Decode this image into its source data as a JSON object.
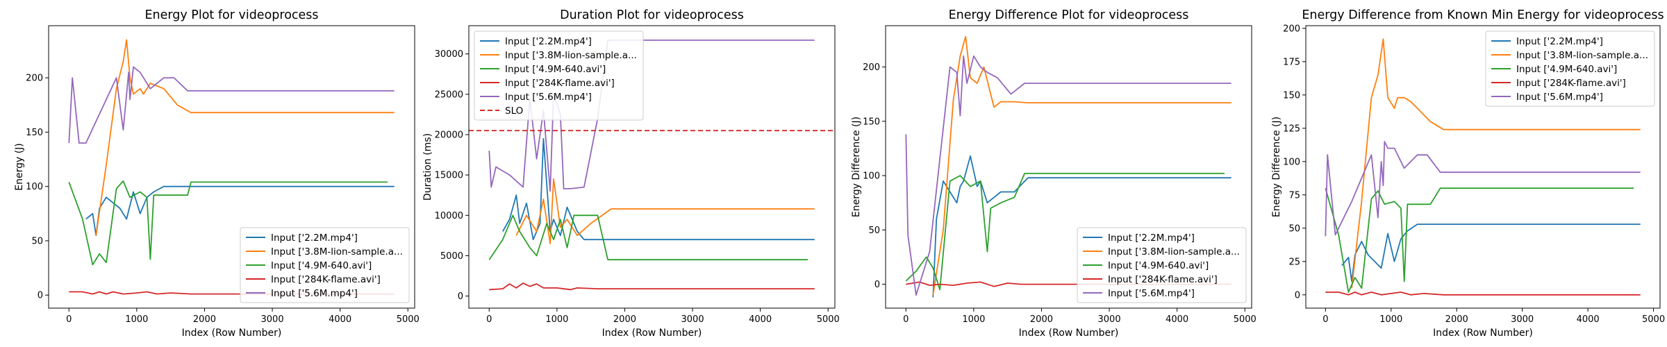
{
  "figure": {
    "series_colors": [
      "#1f77b4",
      "#ff7f0e",
      "#2ca02c",
      "#d62728",
      "#9467bd"
    ],
    "slo_color": "#d62728"
  },
  "chart_data": [
    {
      "type": "line",
      "title": "Energy Plot for videoprocess",
      "xlabel": "Index (Row Number)",
      "ylabel": "Energy (J)",
      "xlim": [
        -300,
        5100
      ],
      "ylim": [
        -12,
        248
      ],
      "xticks": [
        0,
        1000,
        2000,
        3000,
        4000,
        5000
      ],
      "yticks": [
        0,
        50,
        100,
        150,
        200
      ],
      "legend_loc": "lower right",
      "series": [
        {
          "name": "Input ['2.2M.mp4']",
          "x": [
            250,
            350,
            400,
            450,
            550,
            650,
            750,
            850,
            950,
            1050,
            1150,
            1250,
            1400,
            1600,
            1800,
            4800
          ],
          "y": [
            70,
            75,
            55,
            80,
            90,
            85,
            80,
            70,
            95,
            75,
            90,
            95,
            100,
            100,
            100,
            100
          ]
        },
        {
          "name": "Input ['3.8M-lion-sample.a...",
          "x": [
            400,
            550,
            700,
            800,
            850,
            900,
            950,
            1050,
            1100,
            1200,
            1400,
            1600,
            1800,
            4800
          ],
          "y": [
            55,
            120,
            190,
            215,
            235,
            200,
            185,
            190,
            185,
            195,
            190,
            175,
            168,
            168
          ]
        },
        {
          "name": "Input ['4.9M-640.avi']",
          "x": [
            0,
            200,
            350,
            450,
            550,
            700,
            800,
            900,
            1050,
            1150,
            1200,
            1250,
            1400,
            1600,
            1750,
            1800,
            4700
          ],
          "y": [
            104,
            70,
            28,
            38,
            30,
            98,
            105,
            90,
            95,
            90,
            33,
            92,
            92,
            92,
            92,
            104,
            104
          ]
        },
        {
          "name": "Input ['284K-flame.avi']",
          "x": [
            0,
            200,
            350,
            450,
            550,
            650,
            800,
            1000,
            1150,
            1300,
            1500,
            1800,
            4800
          ],
          "y": [
            3,
            3,
            1,
            3,
            1,
            3,
            1,
            2,
            3,
            1,
            2,
            1,
            1
          ]
        },
        {
          "name": "Input ['5.6M.mp4']",
          "x": [
            0,
            50,
            150,
            250,
            400,
            700,
            800,
            880,
            900,
            950,
            1050,
            1200,
            1300,
            1400,
            1550,
            1750,
            4800
          ],
          "y": [
            140,
            200,
            140,
            140,
            160,
            200,
            152,
            205,
            180,
            210,
            205,
            190,
            195,
            200,
            200,
            188,
            188
          ]
        }
      ]
    },
    {
      "type": "line",
      "title": "Duration Plot for videoprocess",
      "xlabel": "Index (Row Number)",
      "ylabel": "Duration (ms)",
      "xlim": [
        -300,
        5100
      ],
      "ylim": [
        -1500,
        33500
      ],
      "xticks": [
        0,
        1000,
        2000,
        3000,
        4000,
        5000
      ],
      "yticks": [
        0,
        5000,
        10000,
        15000,
        20000,
        25000,
        30000
      ],
      "legend_loc": "upper left",
      "slo": {
        "label": "SLO",
        "value": 20500
      },
      "series": [
        {
          "name": "Input ['2.2M.mp4']",
          "x": [
            200,
            300,
            400,
            450,
            550,
            650,
            750,
            800,
            900,
            950,
            1050,
            1150,
            1300,
            1400,
            4800
          ],
          "y": [
            8000,
            9500,
            12500,
            9000,
            11500,
            7000,
            9000,
            19500,
            8000,
            9500,
            7500,
            11000,
            8000,
            7000,
            7000
          ]
        },
        {
          "name": "Input ['3.8M-lion-sample.a...",
          "x": [
            400,
            550,
            700,
            800,
            900,
            950,
            1050,
            1150,
            1300,
            1500,
            1800,
            4800
          ],
          "y": [
            7500,
            10000,
            8000,
            12000,
            6500,
            14500,
            8500,
            9500,
            7500,
            9000,
            10800,
            10800
          ]
        },
        {
          "name": "Input ['4.9M-640.avi']",
          "x": [
            0,
            200,
            350,
            450,
            600,
            700,
            850,
            950,
            1050,
            1150,
            1250,
            1400,
            1600,
            1750,
            4700
          ],
          "y": [
            4500,
            7000,
            10000,
            8000,
            6000,
            5000,
            9000,
            7000,
            9500,
            6000,
            10000,
            10000,
            10000,
            4500,
            4500
          ]
        },
        {
          "name": "Input ['284K-flame.avi']",
          "x": [
            0,
            200,
            300,
            400,
            500,
            600,
            700,
            800,
            1000,
            1200,
            1300,
            1600,
            4800
          ],
          "y": [
            800,
            900,
            1500,
            1000,
            1600,
            1200,
            1500,
            1000,
            1000,
            800,
            1000,
            900,
            900
          ]
        },
        {
          "name": "Input ['5.6M.mp4']",
          "x": [
            0,
            30,
            100,
            300,
            500,
            600,
            700,
            800,
            900,
            950,
            1050,
            1100,
            1200,
            1400,
            1600,
            1750,
            4800
          ],
          "y": [
            18000,
            13500,
            16000,
            15000,
            13500,
            24500,
            17000,
            23000,
            13000,
            25000,
            22500,
            13300,
            13300,
            13500,
            22000,
            31700,
            31700
          ]
        }
      ]
    },
    {
      "type": "line",
      "title": "Energy Difference Plot for videoprocess",
      "xlabel": "Index (Row Number)",
      "ylabel": "Energy Difference (J)",
      "xlim": [
        -300,
        5100
      ],
      "ylim": [
        -22,
        238
      ],
      "xticks": [
        0,
        1000,
        2000,
        3000,
        4000,
        5000
      ],
      "yticks": [
        0,
        50,
        100,
        150,
        200
      ],
      "legend_loc": "lower right",
      "series": [
        {
          "name": "Input ['2.2M.mp4']",
          "x": [
            400,
            450,
            550,
            650,
            750,
            800,
            850,
            950,
            1050,
            1100,
            1200,
            1400,
            1600,
            1800,
            4800
          ],
          "y": [
            -12,
            60,
            95,
            85,
            75,
            90,
            95,
            118,
            90,
            95,
            75,
            85,
            85,
            98,
            98
          ]
        },
        {
          "name": "Input ['3.8M-lion-sample.a...",
          "x": [
            400,
            550,
            700,
            800,
            880,
            950,
            1050,
            1150,
            1250,
            1300,
            1400,
            1600,
            1800,
            4800
          ],
          "y": [
            -10,
            50,
            170,
            210,
            228,
            190,
            185,
            200,
            175,
            163,
            168,
            168,
            167,
            167
          ]
        },
        {
          "name": "Input ['4.9M-640.avi']",
          "x": [
            0,
            150,
            300,
            400,
            500,
            650,
            800,
            950,
            1100,
            1200,
            1250,
            1400,
            1600,
            1750,
            4700
          ],
          "y": [
            3,
            12,
            25,
            15,
            -5,
            95,
            100,
            90,
            95,
            30,
            70,
            75,
            80,
            102,
            102
          ]
        },
        {
          "name": "Input ['284K-flame.avi']",
          "x": [
            0,
            200,
            350,
            500,
            700,
            900,
            1100,
            1300,
            1500,
            1700,
            4800
          ],
          "y": [
            0,
            2,
            -1,
            0,
            -1,
            1,
            2,
            -2,
            1,
            0,
            0
          ]
        },
        {
          "name": "Input ['5.6M.mp4']",
          "x": [
            0,
            30,
            150,
            350,
            650,
            750,
            800,
            850,
            900,
            1000,
            1100,
            1200,
            1350,
            1550,
            1750,
            4800
          ],
          "y": [
            138,
            45,
            -10,
            30,
            200,
            195,
            155,
            210,
            185,
            210,
            200,
            195,
            190,
            175,
            185,
            185
          ]
        }
      ]
    },
    {
      "type": "line",
      "title": "Energy Difference from Known Min Energy for videoprocess",
      "xlabel": "Index (Row Number)",
      "ylabel": "Energy Difference (J)",
      "xlim": [
        -300,
        5100
      ],
      "ylim": [
        -10,
        202
      ],
      "xticks": [
        0,
        1000,
        2000,
        3000,
        4000,
        5000
      ],
      "yticks": [
        0,
        25,
        50,
        75,
        100,
        125,
        150,
        175,
        200
      ],
      "legend_loc": "upper right",
      "series": [
        {
          "name": "Input ['2.2M.mp4']",
          "x": [
            250,
            350,
            400,
            450,
            550,
            650,
            750,
            850,
            950,
            1050,
            1150,
            1250,
            1400,
            1600,
            1800,
            4800
          ],
          "y": [
            22,
            28,
            10,
            30,
            40,
            30,
            25,
            20,
            46,
            25,
            42,
            48,
            53,
            53,
            53,
            53
          ]
        },
        {
          "name": "Input ['3.8M-lion-sample.a...",
          "x": [
            400,
            550,
            700,
            800,
            880,
            950,
            1050,
            1100,
            1200,
            1300,
            1400,
            1600,
            1800,
            4800
          ],
          "y": [
            5,
            70,
            148,
            165,
            192,
            148,
            140,
            148,
            148,
            145,
            140,
            130,
            124,
            124
          ]
        },
        {
          "name": "Input ['4.9M-640.avi']",
          "x": [
            0,
            200,
            350,
            450,
            550,
            700,
            800,
            900,
            1050,
            1150,
            1200,
            1250,
            1400,
            1600,
            1750,
            4700
          ],
          "y": [
            80,
            45,
            2,
            13,
            5,
            72,
            78,
            68,
            70,
            65,
            10,
            68,
            68,
            68,
            80,
            80
          ]
        },
        {
          "name": "Input ['284K-flame.avi']",
          "x": [
            0,
            200,
            350,
            450,
            550,
            700,
            850,
            1000,
            1150,
            1300,
            1500,
            1800,
            4800
          ],
          "y": [
            2,
            2,
            0,
            2,
            0,
            2,
            0,
            1,
            2,
            0,
            1,
            0,
            0
          ]
        },
        {
          "name": "Input ['5.6M.mp4']",
          "x": [
            0,
            30,
            150,
            250,
            400,
            700,
            800,
            850,
            880,
            900,
            950,
            1050,
            1200,
            1300,
            1400,
            1550,
            1750,
            4800
          ],
          "y": [
            44,
            105,
            45,
            55,
            70,
            105,
            58,
            100,
            82,
            115,
            110,
            110,
            95,
            100,
            105,
            105,
            92,
            92
          ]
        }
      ]
    }
  ]
}
